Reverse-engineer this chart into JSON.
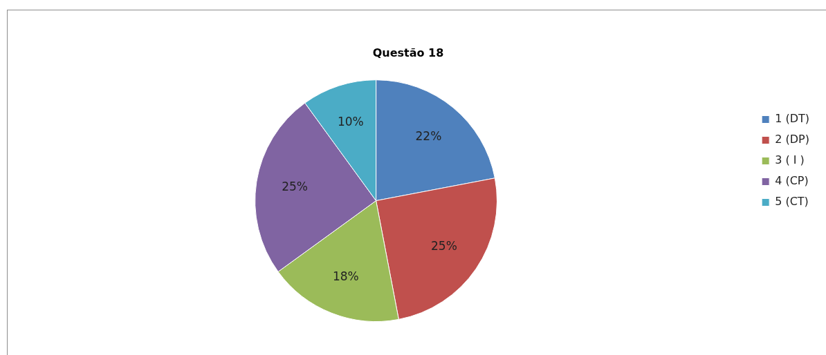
{
  "chart_data": {
    "type": "pie",
    "title": "Questão 18",
    "categories": [
      "1 (DT)",
      "2 (DP)",
      "3 ( I )",
      "4 (CP)",
      "5 (CT)"
    ],
    "values": [
      22,
      25,
      18,
      25,
      10
    ],
    "colors": [
      "#4f81bd",
      "#c0504d",
      "#9bbb59",
      "#8064a2",
      "#4bacc6"
    ],
    "value_labels": [
      "22%",
      "25%",
      "18%",
      "25%",
      "10%"
    ],
    "legend": "right"
  }
}
